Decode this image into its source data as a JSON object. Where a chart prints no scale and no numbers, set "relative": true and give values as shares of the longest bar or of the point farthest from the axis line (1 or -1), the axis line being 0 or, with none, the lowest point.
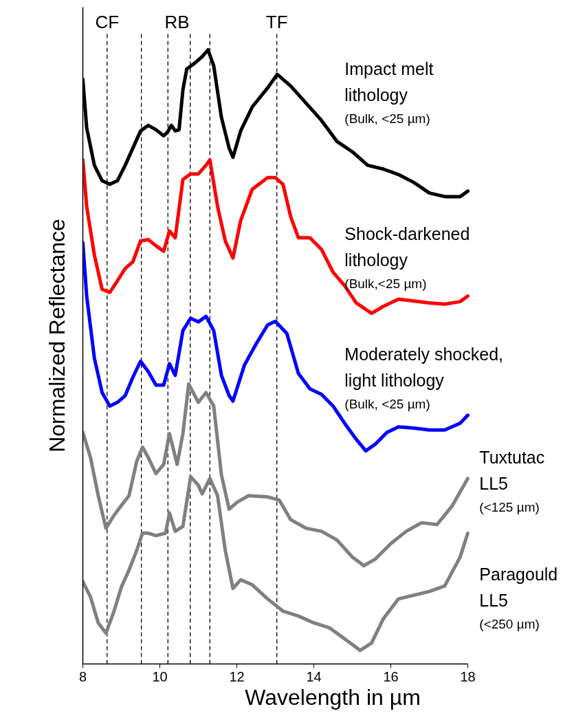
{
  "chart_data": {
    "type": "line",
    "relative": true,
    "xlabel": "Wavelength in µm",
    "ylabel": "Normalized Reflectance",
    "xlim": [
      8,
      18
    ],
    "xticks": [
      8,
      10,
      12,
      14,
      16,
      18
    ],
    "grid": false,
    "line_style": "solid",
    "marker": "none",
    "ref_lines": [
      {
        "axis": "x",
        "value": 8.63,
        "label": "CF",
        "color": "#000000",
        "line_style": "dashed"
      },
      {
        "axis": "x",
        "value": 9.52,
        "label": null,
        "color": "#000000",
        "line_style": "dashed"
      },
      {
        "axis": "x",
        "value": 10.21,
        "label": null,
        "color": "#000000",
        "line_style": "dashed"
      },
      {
        "axis": "x",
        "value": 10.79,
        "label": null,
        "color": "#000000",
        "line_style": "dashed"
      },
      {
        "axis": "x",
        "value": 11.3,
        "label": null,
        "color": "#000000",
        "line_style": "dashed"
      },
      {
        "axis": "x",
        "value": 13.04,
        "label": "TF",
        "color": "#000000",
        "line_style": "dashed"
      }
    ],
    "annotations": [
      "RB"
    ],
    "series": [
      {
        "name": "Impact melt\nlithology\n(Bulk, <25 µm)",
        "color": "#000000",
        "x": [
          8.0,
          8.1,
          8.3,
          8.5,
          8.7,
          8.9,
          9.1,
          9.3,
          9.5,
          9.7,
          9.9,
          10.1,
          10.2,
          10.3,
          10.4,
          10.5,
          10.6,
          10.7,
          10.9,
          11.1,
          11.25,
          11.4,
          11.6,
          11.8,
          11.9,
          12.1,
          12.4,
          12.8,
          13.05,
          13.4,
          13.8,
          14.2,
          14.6,
          15.0,
          15.4,
          15.8,
          16.2,
          16.6,
          17.0,
          17.4,
          17.8,
          18.0
        ],
        "values": [
          0.952,
          0.873,
          0.812,
          0.787,
          0.781,
          0.787,
          0.812,
          0.84,
          0.868,
          0.877,
          0.87,
          0.86,
          0.866,
          0.877,
          0.868,
          0.87,
          0.935,
          0.969,
          0.978,
          0.989,
          1,
          0.974,
          0.89,
          0.84,
          0.825,
          0.868,
          0.907,
          0.938,
          0.96,
          0.941,
          0.913,
          0.885,
          0.851,
          0.834,
          0.812,
          0.806,
          0.797,
          0.784,
          0.767,
          0.761,
          0.761,
          0.77
        ]
      },
      {
        "name": "Shock-darkened\nlithology\n(Bulk,<25 µm)",
        "color": "#ff0000",
        "x": [
          8.0,
          8.1,
          8.3,
          8.5,
          8.7,
          8.9,
          9.1,
          9.3,
          9.5,
          9.7,
          9.9,
          10.1,
          10.25,
          10.4,
          10.6,
          10.8,
          11.0,
          11.2,
          11.3,
          11.5,
          11.7,
          11.9,
          12.1,
          12.4,
          12.8,
          13.0,
          13.2,
          13.4,
          13.6,
          13.9,
          14.2,
          14.5,
          14.8,
          15.1,
          15.5,
          15.8,
          16.2,
          16.6,
          17.0,
          17.4,
          17.8,
          18.0
        ],
        "values": [
          0.821,
          0.745,
          0.666,
          0.61,
          0.605,
          0.624,
          0.644,
          0.655,
          0.689,
          0.691,
          0.681,
          0.672,
          0.705,
          0.694,
          0.789,
          0.798,
          0.798,
          0.812,
          0.821,
          0.745,
          0.689,
          0.661,
          0.722,
          0.773,
          0.792,
          0.792,
          0.781,
          0.728,
          0.694,
          0.694,
          0.675,
          0.638,
          0.616,
          0.588,
          0.571,
          0.582,
          0.594,
          0.591,
          0.588,
          0.586,
          0.59,
          0.599
        ]
      },
      {
        "name": "Moderately shocked,\nlight lithology\n(Bulk, <25 µm)",
        "color": "#0000ff",
        "x": [
          8.0,
          8.1,
          8.3,
          8.5,
          8.7,
          8.9,
          9.1,
          9.3,
          9.5,
          9.7,
          9.9,
          10.1,
          10.25,
          10.4,
          10.6,
          10.8,
          11.0,
          11.2,
          11.4,
          11.6,
          11.8,
          11.9,
          12.2,
          12.5,
          12.8,
          13.0,
          13.3,
          13.6,
          13.9,
          14.2,
          14.5,
          14.8,
          15.1,
          15.35,
          15.6,
          15.9,
          16.2,
          16.6,
          17.0,
          17.4,
          17.8,
          18.0
        ],
        "values": [
          0.686,
          0.599,
          0.498,
          0.442,
          0.42,
          0.426,
          0.437,
          0.467,
          0.493,
          0.476,
          0.454,
          0.454,
          0.489,
          0.47,
          0.543,
          0.563,
          0.557,
          0.566,
          0.543,
          0.47,
          0.437,
          0.428,
          0.487,
          0.521,
          0.552,
          0.558,
          0.538,
          0.473,
          0.448,
          0.439,
          0.42,
          0.392,
          0.366,
          0.347,
          0.358,
          0.377,
          0.386,
          0.384,
          0.381,
          0.381,
          0.392,
          0.405
        ]
      },
      {
        "name": "Tuxtutac\nLL5\n(<125 µm)",
        "color": "#808080",
        "x": [
          8.0,
          8.2,
          8.4,
          8.6,
          8.8,
          9.0,
          9.2,
          9.4,
          9.55,
          9.7,
          9.9,
          10.1,
          10.25,
          10.45,
          10.6,
          10.75,
          11.0,
          11.2,
          11.4,
          11.6,
          11.8,
          12.0,
          12.3,
          12.8,
          13.1,
          13.4,
          13.8,
          14.2,
          14.6,
          15.0,
          15.3,
          15.6,
          16.0,
          16.4,
          16.8,
          17.2,
          17.6,
          18.0
        ],
        "values": [
          0.377,
          0.336,
          0.274,
          0.221,
          0.241,
          0.258,
          0.274,
          0.33,
          0.353,
          0.336,
          0.31,
          0.325,
          0.375,
          0.325,
          0.375,
          0.456,
          0.426,
          0.442,
          0.42,
          0.308,
          0.252,
          0.263,
          0.274,
          0.272,
          0.267,
          0.235,
          0.221,
          0.216,
          0.202,
          0.174,
          0.16,
          0.171,
          0.196,
          0.216,
          0.23,
          0.227,
          0.258,
          0.302
        ]
      },
      {
        "name": "Paragould\nLL5\n(<250 µm)",
        "color": "#808080",
        "x": [
          8.0,
          8.2,
          8.4,
          8.6,
          8.8,
          9.0,
          9.2,
          9.4,
          9.55,
          9.7,
          9.9,
          10.15,
          10.25,
          10.4,
          10.6,
          10.8,
          11.0,
          11.1,
          11.3,
          11.5,
          11.7,
          11.9,
          12.1,
          12.4,
          12.8,
          13.2,
          13.6,
          14.0,
          14.4,
          14.8,
          15.2,
          15.5,
          15.8,
          16.2,
          16.6,
          17.0,
          17.4,
          17.8,
          18.0
        ],
        "values": [
          0.134,
          0.109,
          0.067,
          0.05,
          0.084,
          0.125,
          0.153,
          0.185,
          0.213,
          0.213,
          0.209,
          0.213,
          0.246,
          0.216,
          0.224,
          0.305,
          0.291,
          0.277,
          0.302,
          0.274,
          0.185,
          0.123,
          0.137,
          0.129,
          0.106,
          0.086,
          0.078,
          0.067,
          0.059,
          0.041,
          0.022,
          0.034,
          0.073,
          0.106,
          0.112,
          0.118,
          0.127,
          0.174,
          0.213
        ]
      }
    ]
  }
}
